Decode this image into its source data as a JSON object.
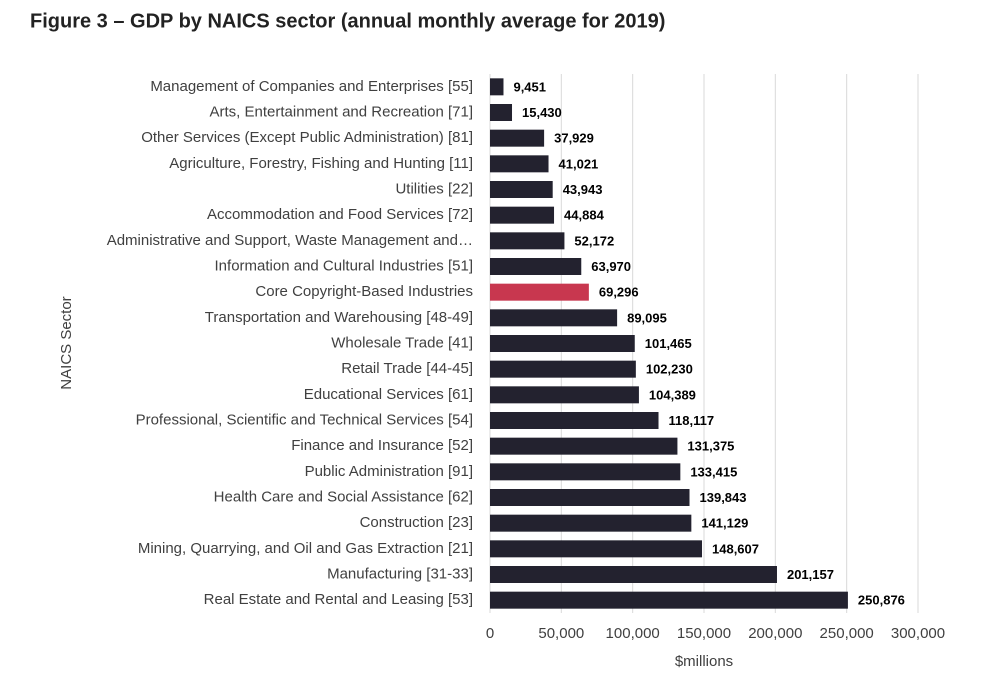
{
  "chart_data": {
    "type": "bar",
    "orientation": "horizontal",
    "title": "Figure 3 – GDP by NAICS sector (annual monthly average for 2019)",
    "x_label": "$millions",
    "y_label": "NAICS Sector",
    "categories": [
      "Management of Companies and Enterprises [55]",
      "Arts, Entertainment and Recreation [71]",
      "Other Services (Except Public Administration) [81]",
      "Agriculture, Forestry, Fishing and Hunting [11]",
      "Utilities [22]",
      "Accommodation and Food Services [72]",
      "Administrative and Support, Waste Management and…",
      "Information and Cultural Industries [51]",
      "Core Copyright-Based Industries",
      "Transportation and Warehousing [48-49]",
      "Wholesale Trade [41]",
      "Retail Trade [44-45]",
      "Educational Services [61]",
      "Professional, Scientific and Technical Services [54]",
      "Finance and Insurance [52]",
      "Public Administration [91]",
      "Health Care and Social Assistance [62]",
      "Construction [23]",
      "Mining, Quarrying, and Oil and Gas Extraction [21]",
      "Manufacturing [31-33]",
      "Real Estate and Rental and Leasing [53]"
    ],
    "values": [
      9451,
      15430,
      37929,
      41021,
      43943,
      44884,
      52172,
      63970,
      69296,
      89095,
      101465,
      102230,
      104389,
      118117,
      131375,
      133415,
      139843,
      141129,
      148607,
      201157,
      250876
    ],
    "value_labels": [
      "9,451",
      "15,430",
      "37,929",
      "41,021",
      "43,943",
      "44,884",
      "52,172",
      "63,970",
      "69,296",
      "89,095",
      "101,465",
      "102,230",
      "104,389",
      "118,117",
      "131,375",
      "133,415",
      "139,843",
      "141,129",
      "148,607",
      "201,157",
      "250,876"
    ],
    "colors": [
      "#23222f",
      "#23222f",
      "#23222f",
      "#23222f",
      "#23222f",
      "#23222f",
      "#23222f",
      "#23222f",
      "#c8374f",
      "#23222f",
      "#23222f",
      "#23222f",
      "#23222f",
      "#23222f",
      "#23222f",
      "#23222f",
      "#23222f",
      "#23222f",
      "#23222f",
      "#23222f",
      "#23222f"
    ],
    "xlim": [
      0,
      300000
    ],
    "xticks": [
      0,
      {
        "value": 50000,
        "label": "50,000"
      },
      {
        "value": 100000,
        "label": "100,000"
      },
      {
        "value": 150000,
        "label": "150,000"
      },
      {
        "value": 200000,
        "label": "200,000"
      },
      {
        "value": 250000,
        "label": "250,000"
      },
      {
        "value": 300000,
        "label": "300,000"
      }
    ],
    "grid": true
  }
}
